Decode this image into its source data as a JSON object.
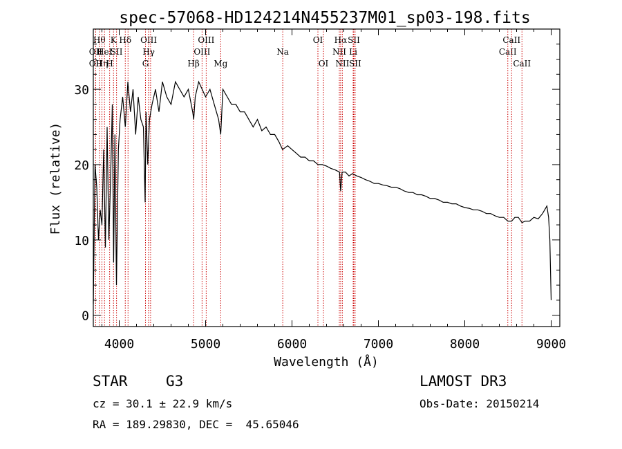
{
  "colors": {
    "line_color": "#cc0000",
    "spectrum_color": "#000000"
  },
  "info": {
    "class_label": "STAR",
    "subclass": "G3",
    "survey": "LAMOST DR3",
    "cz": "cz = 30.1 ± 22.9 km/s",
    "obs_date": "Obs-Date: 20150214",
    "coords": "RA = 189.29830, DEC =  45.65046"
  },
  "chart_data": {
    "type": "line",
    "title": "spec-57068-HD124214N455237M01_sp03-198.fits",
    "xlabel": "Wavelength (Å)",
    "ylabel": "Flux (relative)",
    "xlim": [
      3700,
      9100
    ],
    "ylim": [
      -1.5,
      38
    ],
    "xticks": [
      4000,
      5000,
      6000,
      7000,
      8000,
      9000
    ],
    "yticks": [
      0,
      10,
      20,
      30
    ],
    "spectrum": {
      "x": [
        3700,
        3720,
        3740,
        3760,
        3780,
        3800,
        3820,
        3840,
        3860,
        3880,
        3900,
        3920,
        3935,
        3950,
        3968,
        3990,
        4010,
        4040,
        4070,
        4100,
        4130,
        4160,
        4190,
        4220,
        4250,
        4280,
        4300,
        4310,
        4330,
        4350,
        4380,
        4420,
        4460,
        4500,
        4550,
        4600,
        4650,
        4700,
        4750,
        4800,
        4850,
        4862,
        4880,
        4920,
        4960,
        5000,
        5050,
        5100,
        5150,
        5175,
        5200,
        5250,
        5300,
        5350,
        5400,
        5450,
        5500,
        5550,
        5600,
        5650,
        5700,
        5750,
        5800,
        5850,
        5890,
        5950,
        6000,
        6050,
        6100,
        6150,
        6200,
        6250,
        6300,
        6350,
        6400,
        6450,
        6500,
        6550,
        6563,
        6580,
        6620,
        6660,
        6700,
        6750,
        6800,
        6850,
        6900,
        6950,
        7000,
        7050,
        7100,
        7150,
        7200,
        7250,
        7300,
        7350,
        7400,
        7450,
        7500,
        7550,
        7600,
        7650,
        7700,
        7750,
        7800,
        7850,
        7900,
        7950,
        8000,
        8050,
        8100,
        8150,
        8200,
        8250,
        8300,
        8350,
        8400,
        8450,
        8498,
        8542,
        8580,
        8620,
        8662,
        8700,
        8750,
        8800,
        8850,
        8900,
        8950,
        8970,
        8985,
        9000
      ],
      "y": [
        1.5,
        20,
        17,
        10,
        14,
        12,
        22,
        9,
        25,
        10,
        18,
        28,
        7,
        24,
        4,
        22,
        26,
        29,
        25,
        31,
        27,
        30,
        24,
        29,
        26,
        25,
        15,
        27,
        20,
        26,
        28,
        30,
        27,
        31,
        29,
        28,
        31,
        30,
        29,
        30,
        27,
        26,
        29,
        31,
        30,
        29,
        30,
        28,
        26,
        24,
        30,
        29,
        28,
        28,
        27,
        27,
        26,
        25,
        26,
        24.5,
        25,
        24,
        24,
        23,
        22,
        22.5,
        22,
        21.5,
        21,
        21,
        20.5,
        20.5,
        20,
        20,
        19.8,
        19.5,
        19.3,
        19,
        16.5,
        19,
        19,
        18.5,
        18.8,
        18.5,
        18.3,
        18,
        17.8,
        17.5,
        17.5,
        17.3,
        17.2,
        17,
        17,
        16.8,
        16.5,
        16.3,
        16.3,
        16,
        16,
        15.8,
        15.5,
        15.5,
        15.3,
        15,
        15,
        14.8,
        14.8,
        14.5,
        14.3,
        14.2,
        14,
        14,
        13.8,
        13.5,
        13.5,
        13.2,
        13,
        13,
        12.5,
        12.5,
        13,
        13,
        12.3,
        12.5,
        12.5,
        13,
        12.8,
        13.5,
        14.5,
        13,
        10,
        2
      ]
    },
    "line_markers": [
      {
        "wave": 3727,
        "label": "OII",
        "row": 2
      },
      {
        "wave": 3727,
        "label": "OII",
        "row": 3
      },
      {
        "wave": 3770,
        "label": "Hθ",
        "row": 1
      },
      {
        "wave": 3800,
        "label": "Hη",
        "row": 3
      },
      {
        "wave": 3830,
        "label": "HeI",
        "row": 2
      },
      {
        "wave": 3889,
        "label": "H",
        "row": 3
      },
      {
        "wave": 3934,
        "label": "K",
        "row": 1
      },
      {
        "wave": 3969,
        "label": "SII",
        "row": 2
      },
      {
        "wave": 4070,
        "label": "Hδ",
        "row": 1
      },
      {
        "wave": 4102,
        "label": "",
        "row": 0
      },
      {
        "wave": 4304,
        "label": "G",
        "row": 3
      },
      {
        "wave": 4341,
        "label": "OIII",
        "row": 1
      },
      {
        "wave": 4341,
        "label": "Hγ",
        "row": 2
      },
      {
        "wave": 4363,
        "label": "",
        "row": 0
      },
      {
        "wave": 4861,
        "label": "Hβ",
        "row": 3
      },
      {
        "wave": 4959,
        "label": "OIII",
        "row": 2
      },
      {
        "wave": 5007,
        "label": "OIII",
        "row": 1
      },
      {
        "wave": 5175,
        "label": "Mg",
        "row": 3
      },
      {
        "wave": 5893,
        "label": "Na",
        "row": 2
      },
      {
        "wave": 6300,
        "label": "OI",
        "row": 1
      },
      {
        "wave": 6364,
        "label": "OI",
        "row": 3
      },
      {
        "wave": 6548,
        "label": "NII",
        "row": 2
      },
      {
        "wave": 6563,
        "label": "Hα",
        "row": 1
      },
      {
        "wave": 6583,
        "label": "NII",
        "row": 3
      },
      {
        "wave": 6708,
        "label": "Li",
        "row": 2
      },
      {
        "wave": 6716,
        "label": "SII",
        "row": 1
      },
      {
        "wave": 6731,
        "label": "SII",
        "row": 3
      },
      {
        "wave": 8498,
        "label": "CaII",
        "row": 2
      },
      {
        "wave": 8542,
        "label": "CaII",
        "row": 1
      },
      {
        "wave": 8662,
        "label": "CaII",
        "row": 3
      }
    ]
  }
}
